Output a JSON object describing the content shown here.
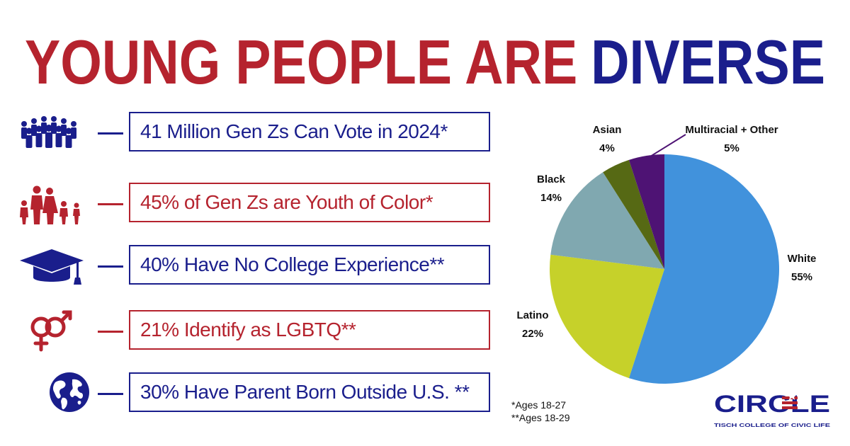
{
  "headline": {
    "part1": "YOUNG PEOPLE ARE",
    "part2": "DIVERSE"
  },
  "colors": {
    "red": "#B5232E",
    "navy": "#1A1E8C",
    "white_slice": "#4192DC",
    "latino_slice": "#C6D12A",
    "black_slice": "#80A8B0",
    "asian_slice": "#566914",
    "multiracial_slice": "#4E1374"
  },
  "stats": [
    {
      "text": "41 Million Gen Zs Can Vote in 2024*",
      "icon": "crowd-icon",
      "color": "navy"
    },
    {
      "text": "45% of Gen Zs are Youth of Color*",
      "icon": "family-icon",
      "color": "red"
    },
    {
      "text": "40% Have No College Experience**",
      "icon": "graduation-cap-icon",
      "color": "navy"
    },
    {
      "text": "21% Identify as LGBTQ**",
      "icon": "gender-symbols-icon",
      "color": "red"
    },
    {
      "text": "30% Have Parent Born Outside U.S. **",
      "icon": "globe-icon",
      "color": "navy"
    }
  ],
  "chart_data": {
    "type": "pie",
    "title": "",
    "slices": [
      {
        "name": "White",
        "value": 55,
        "label": "55%",
        "color": "#4192DC"
      },
      {
        "name": "Latino",
        "value": 22,
        "label": "22%",
        "color": "#C6D12A"
      },
      {
        "name": "Black",
        "value": 14,
        "label": "14%",
        "color": "#80A8B0"
      },
      {
        "name": "Asian",
        "value": 4,
        "label": "4%",
        "color": "#566914"
      },
      {
        "name": "Multiracial + Other",
        "value": 5,
        "label": "5%",
        "color": "#4E1374"
      }
    ]
  },
  "footnotes": {
    "note1": "*Ages 18-27",
    "note2": "**Ages 18-29"
  },
  "logo": {
    "wordmark": "CIRCLE",
    "tagline": "TISCH COLLEGE OF CIVIC LIFE"
  }
}
